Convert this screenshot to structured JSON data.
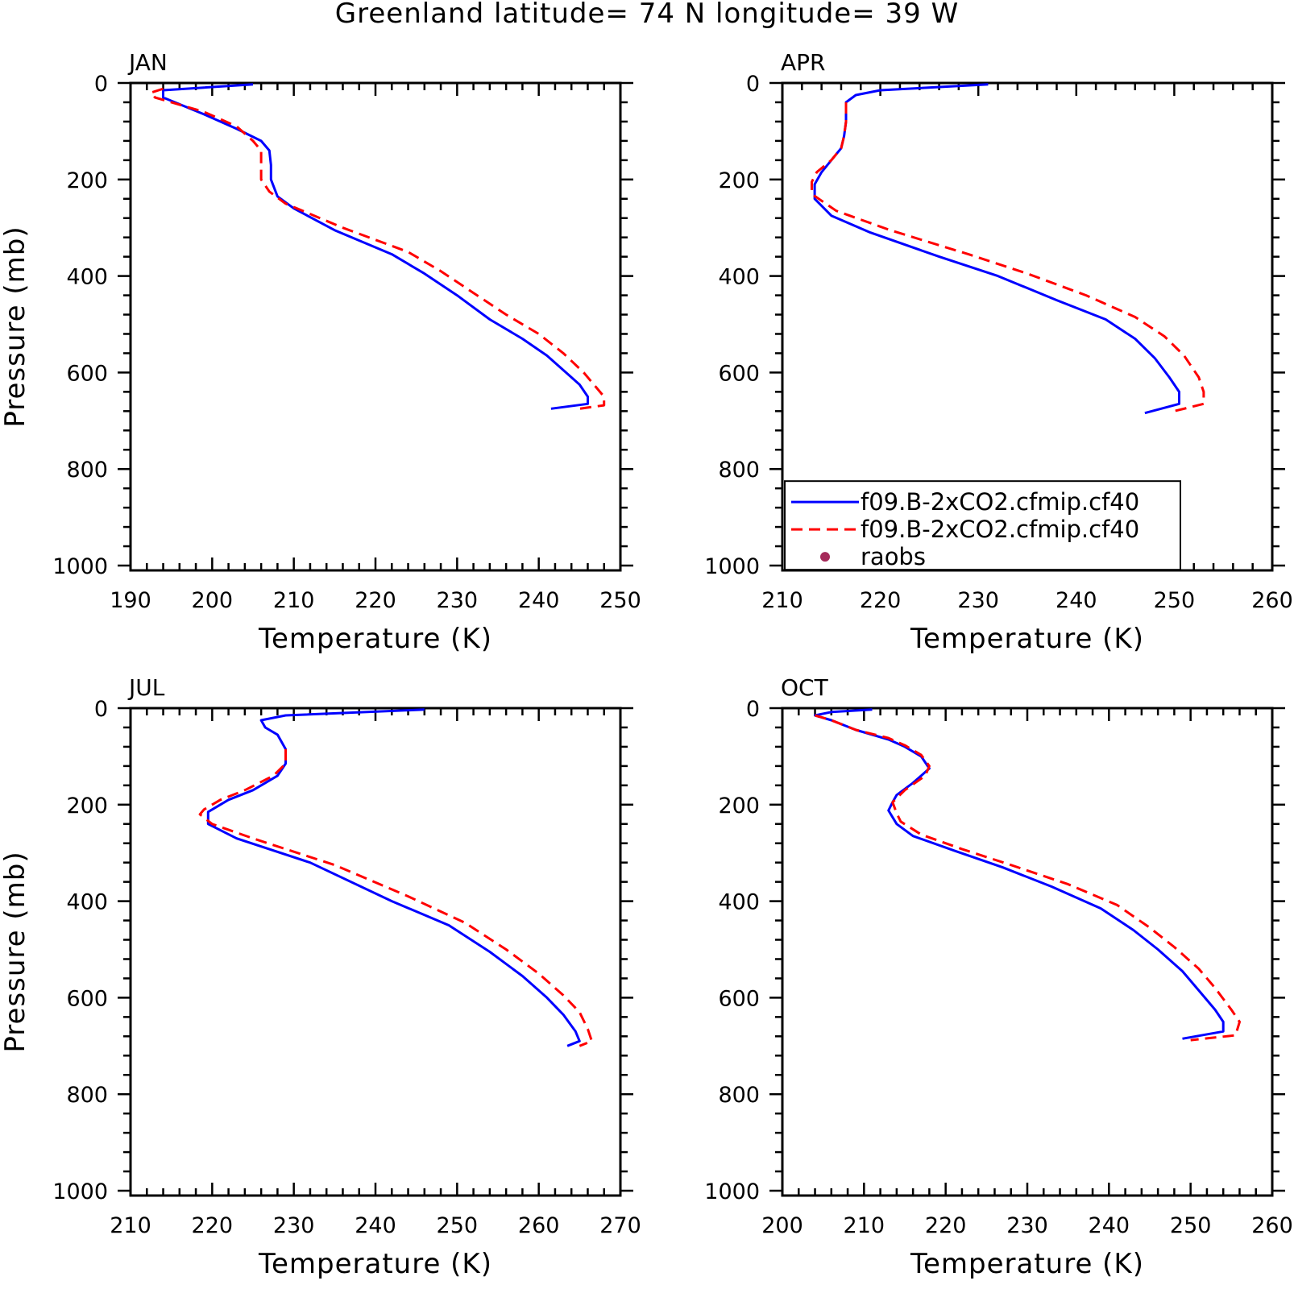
{
  "title": "Greenland  latitude= 74 N longitude= 39 W",
  "colors": {
    "model": "#0000ff",
    "twoxco2": "#ff0000",
    "raobs": "#a52a5a"
  },
  "legend": {
    "items": [
      {
        "label": "f09.B-2xCO2.cfmip.cf40",
        "style": "solid-blue"
      },
      {
        "label": "f09.B-2xCO2.cfmip.cf40",
        "style": "dashed-red"
      },
      {
        "label": "raobs",
        "style": "dot"
      }
    ]
  },
  "chart_data": [
    {
      "type": "line",
      "title": "JAN",
      "xlabel": "Temperature (K)",
      "ylabel": "Pressure (mb)",
      "xlim": [
        190,
        250
      ],
      "ylim": [
        1000,
        0
      ],
      "y_inverted": true,
      "xticks": [
        190,
        200,
        210,
        220,
        230,
        240,
        250
      ],
      "yticks": [
        0,
        200,
        400,
        600,
        800,
        1000
      ],
      "series": [
        {
          "name": "f09.B-2xCO2.cfmip.cf40",
          "style": "solid",
          "color": "#0000ff",
          "points": [
            [
              205,
              3
            ],
            [
              194,
              15
            ],
            [
              194,
              30
            ],
            [
              199,
              65
            ],
            [
              203,
              95
            ],
            [
              206,
              120
            ],
            [
              207,
              140
            ],
            [
              207.2,
              170
            ],
            [
              207.2,
              200
            ],
            [
              208,
              235
            ],
            [
              210,
              260
            ],
            [
              215,
              305
            ],
            [
              222,
              355
            ],
            [
              226,
              395
            ],
            [
              230,
              440
            ],
            [
              234,
              490
            ],
            [
              238,
              530
            ],
            [
              241,
              565
            ],
            [
              243,
              595
            ],
            [
              245,
              625
            ],
            [
              246,
              650
            ],
            [
              246,
              665
            ],
            [
              241.5,
              675
            ]
          ]
        },
        {
          "name": "f09.B-2xCO2.cfmip.cf40",
          "style": "dashed",
          "color": "#ff0000",
          "points": [
            [
              194,
              12
            ],
            [
              192.5,
              20
            ],
            [
              193,
              30
            ],
            [
              199,
              60
            ],
            [
              203,
              90
            ],
            [
              205,
              120
            ],
            [
              206,
              140
            ],
            [
              206,
              170
            ],
            [
              206,
              200
            ],
            [
              207,
              225
            ],
            [
              209,
              250
            ],
            [
              216,
              300
            ],
            [
              224,
              350
            ],
            [
              228,
              390
            ],
            [
              232,
              435
            ],
            [
              236,
              480
            ],
            [
              240,
              520
            ],
            [
              243,
              560
            ],
            [
              245.5,
              600
            ],
            [
              247,
              630
            ],
            [
              248,
              650
            ],
            [
              248,
              668
            ],
            [
              245,
              675
            ]
          ]
        }
      ]
    },
    {
      "type": "line",
      "title": "APR",
      "xlabel": "Temperature (K)",
      "ylabel": "",
      "xlim": [
        210,
        260
      ],
      "ylim": [
        1000,
        0
      ],
      "y_inverted": true,
      "xticks": [
        210,
        220,
        230,
        240,
        250,
        260
      ],
      "yticks": [
        0,
        200,
        400,
        600,
        800,
        1000
      ],
      "series": [
        {
          "name": "f09.B-2xCO2.cfmip.cf40",
          "style": "solid",
          "color": "#0000ff",
          "points": [
            [
              231,
              3
            ],
            [
              220,
              15
            ],
            [
              217.5,
              25
            ],
            [
              216.5,
              40
            ],
            [
              216.5,
              80
            ],
            [
              216.3,
              110
            ],
            [
              216,
              135
            ],
            [
              215,
              160
            ],
            [
              214,
              185
            ],
            [
              213.3,
              210
            ],
            [
              213.3,
              240
            ],
            [
              215,
              275
            ],
            [
              219,
              310
            ],
            [
              226,
              360
            ],
            [
              232,
              400
            ],
            [
              238,
              450
            ],
            [
              243,
              490
            ],
            [
              246,
              530
            ],
            [
              248,
              570
            ],
            [
              249.5,
              610
            ],
            [
              250.5,
              640
            ],
            [
              250.5,
              665
            ],
            [
              247,
              684
            ]
          ]
        },
        {
          "name": "f09.B-2xCO2.cfmip.cf40",
          "style": "dashed",
          "color": "#ff0000",
          "points": [
            [
              216.5,
              40
            ],
            [
              216.5,
              80
            ],
            [
              216.3,
              110
            ],
            [
              216,
              135
            ],
            [
              215,
              160
            ],
            [
              213.5,
              185
            ],
            [
              213,
              205
            ],
            [
              213,
              230
            ],
            [
              215.5,
              265
            ],
            [
              221,
              305
            ],
            [
              229,
              355
            ],
            [
              235,
              395
            ],
            [
              241,
              440
            ],
            [
              246,
              485
            ],
            [
              249,
              525
            ],
            [
              251,
              565
            ],
            [
              252.5,
              610
            ],
            [
              253,
              640
            ],
            [
              253,
              665
            ],
            [
              250,
              680
            ]
          ]
        }
      ]
    },
    {
      "type": "line",
      "title": "JUL",
      "xlabel": "Temperature (K)",
      "ylabel": "Pressure (mb)",
      "xlim": [
        210,
        270
      ],
      "ylim": [
        1000,
        0
      ],
      "y_inverted": true,
      "xticks": [
        210,
        220,
        230,
        240,
        250,
        260,
        270
      ],
      "yticks": [
        0,
        200,
        400,
        600,
        800,
        1000
      ],
      "series": [
        {
          "name": "f09.B-2xCO2.cfmip.cf40",
          "style": "solid",
          "color": "#0000ff",
          "points": [
            [
              246,
              3
            ],
            [
              229,
              15
            ],
            [
              226,
              25
            ],
            [
              226.5,
              40
            ],
            [
              228,
              55
            ],
            [
              229,
              85
            ],
            [
              229,
              115
            ],
            [
              228,
              140
            ],
            [
              225,
              170
            ],
            [
              222,
              190
            ],
            [
              219.5,
              215
            ],
            [
              219.5,
              240
            ],
            [
              223,
              270
            ],
            [
              232,
              320
            ],
            [
              242,
              400
            ],
            [
              249,
              450
            ],
            [
              254,
              505
            ],
            [
              258,
              555
            ],
            [
              261,
              600
            ],
            [
              263,
              635
            ],
            [
              264.5,
              670
            ],
            [
              265,
              690
            ],
            [
              263.5,
              700
            ]
          ]
        },
        {
          "name": "f09.B-2xCO2.cfmip.cf40",
          "style": "dashed",
          "color": "#ff0000",
          "points": [
            [
              229,
              85
            ],
            [
              229,
              115
            ],
            [
              227.5,
              140
            ],
            [
              224,
              170
            ],
            [
              221,
              190
            ],
            [
              219,
              210
            ],
            [
              218.5,
              220
            ],
            [
              220,
              240
            ],
            [
              225,
              270
            ],
            [
              235,
              325
            ],
            [
              244,
              390
            ],
            [
              251,
              445
            ],
            [
              256,
              500
            ],
            [
              260,
              550
            ],
            [
              263,
              595
            ],
            [
              265,
              630
            ],
            [
              266,
              665
            ],
            [
              266.5,
              690
            ],
            [
              265,
              700
            ]
          ]
        }
      ]
    },
    {
      "type": "line",
      "title": "OCT",
      "xlabel": "Temperature (K)",
      "ylabel": "",
      "xlim": [
        200,
        260
      ],
      "ylim": [
        1000,
        0
      ],
      "y_inverted": true,
      "xticks": [
        200,
        210,
        220,
        230,
        240,
        250,
        260
      ],
      "yticks": [
        0,
        200,
        400,
        600,
        800,
        1000
      ],
      "series": [
        {
          "name": "f09.B-2xCO2.cfmip.cf40",
          "style": "solid",
          "color": "#0000ff",
          "points": [
            [
              211,
              3
            ],
            [
              206,
              8
            ],
            [
              204,
              15
            ],
            [
              206,
              25
            ],
            [
              209,
              45
            ],
            [
              213,
              65
            ],
            [
              215,
              80
            ],
            [
              217,
              100
            ],
            [
              218,
              125
            ],
            [
              216,
              155
            ],
            [
              214,
              180
            ],
            [
              213.5,
              195
            ],
            [
              213,
              212
            ],
            [
              214,
              240
            ],
            [
              216,
              265
            ],
            [
              221,
              295
            ],
            [
              227,
              330
            ],
            [
              233,
              370
            ],
            [
              239,
              415
            ],
            [
              243,
              460
            ],
            [
              246,
              500
            ],
            [
              249,
              545
            ],
            [
              251,
              585
            ],
            [
              253,
              625
            ],
            [
              254,
              650
            ],
            [
              254,
              670
            ],
            [
              249,
              685
            ]
          ]
        },
        {
          "name": "f09.B-2xCO2.cfmip.cf40",
          "style": "dashed",
          "color": "#ff0000",
          "points": [
            [
              204,
              15
            ],
            [
              206,
              25
            ],
            [
              209,
              45
            ],
            [
              213,
              62
            ],
            [
              215,
              77
            ],
            [
              217,
              97
            ],
            [
              218,
              120
            ],
            [
              217.5,
              140
            ],
            [
              215,
              170
            ],
            [
              213.5,
              195
            ],
            [
              214,
              218
            ],
            [
              214.5,
              235
            ],
            [
              217,
              262
            ],
            [
              222,
              292
            ],
            [
              228,
              325
            ],
            [
              235,
              365
            ],
            [
              241,
              408
            ],
            [
              245,
              455
            ],
            [
              248,
              495
            ],
            [
              251,
              540
            ],
            [
              253,
              580
            ],
            [
              255,
              625
            ],
            [
              256,
              650
            ],
            [
              255.5,
              678
            ],
            [
              250,
              688
            ]
          ]
        }
      ]
    }
  ]
}
